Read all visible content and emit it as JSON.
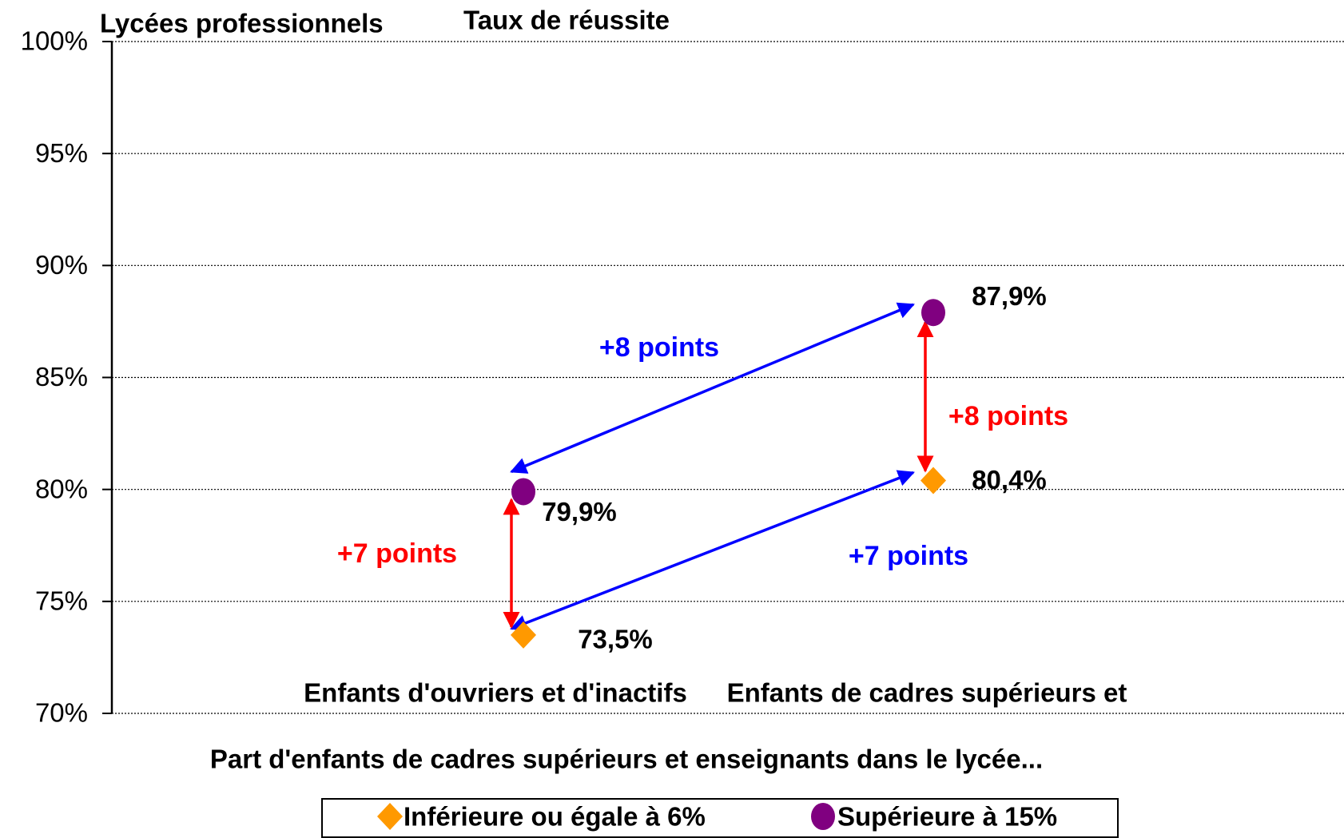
{
  "chart_data": {
    "type": "scatter",
    "corner_label": "Lycées professionnels",
    "title": "Taux de réussite",
    "x_label": "Part d'enfants de cadres supérieurs et enseignants dans le lycée...",
    "categories": [
      "Enfants d'ouvriers et d'inactifs",
      "Enfants de cadres supérieurs et"
    ],
    "series": [
      {
        "name": "Inférieure ou égale à 6%",
        "color": "#ff9900",
        "marker": "diamond",
        "values": [
          73.5,
          80.4
        ],
        "value_labels": [
          "73,5%",
          "80,4%"
        ]
      },
      {
        "name": "Supérieure à 15%",
        "color": "#800080",
        "marker": "circle",
        "values": [
          79.9,
          87.9
        ],
        "value_labels": [
          "79,9%",
          "87,9%"
        ]
      }
    ],
    "annotations": [
      {
        "text": "+8 points",
        "color": "#0000ff"
      },
      {
        "text": "+7 points",
        "color": "#ff0000"
      },
      {
        "text": "+8 points",
        "color": "#ff0000"
      },
      {
        "text": "+7 points",
        "color": "#0000ff"
      }
    ],
    "ylim": [
      70,
      100
    ],
    "yticks": [
      {
        "value": 70,
        "label": "70%"
      },
      {
        "value": 75,
        "label": "75%"
      },
      {
        "value": 80,
        "label": "80%"
      },
      {
        "value": 85,
        "label": "85%"
      },
      {
        "value": 90,
        "label": "90%"
      },
      {
        "value": 95,
        "label": "95%"
      },
      {
        "value": 100,
        "label": "100%"
      }
    ],
    "grid": true
  }
}
